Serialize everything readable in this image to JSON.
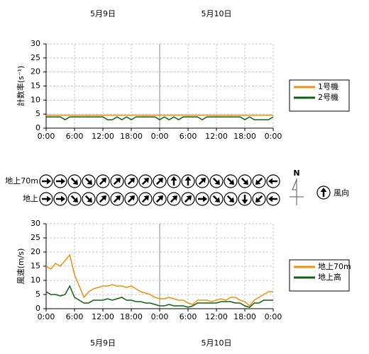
{
  "chart_data": [
    {
      "type": "line",
      "dates": [
        "5月9日",
        "5月10日"
      ],
      "ylabel": "計数率(s⁻¹)",
      "xlim": [
        0,
        48
      ],
      "xticks": [
        {
          "value": 0,
          "label": "0:00"
        },
        {
          "value": 6,
          "label": "6:00"
        },
        {
          "value": 12,
          "label": "12:00"
        },
        {
          "value": 18,
          "label": "18:00"
        },
        {
          "value": 24,
          "label": "0:00"
        },
        {
          "value": 30,
          "label": "6:00"
        },
        {
          "value": 36,
          "label": "12:00"
        },
        {
          "value": 42,
          "label": "18:00"
        },
        {
          "value": 48,
          "label": "0:00"
        }
      ],
      "ylim": [
        0,
        30
      ],
      "yticks": [
        0,
        5,
        10,
        15,
        20,
        25,
        30
      ],
      "grid": true,
      "x": [
        0,
        1,
        2,
        3,
        4,
        5,
        6,
        7,
        8,
        9,
        10,
        11,
        12,
        13,
        14,
        15,
        16,
        17,
        18,
        19,
        20,
        21,
        22,
        23,
        24,
        25,
        26,
        27,
        28,
        29,
        30,
        31,
        32,
        33,
        34,
        35,
        36,
        37,
        38,
        39,
        40,
        41,
        42,
        43,
        44,
        45,
        46,
        47,
        48
      ],
      "series": [
        {
          "name": "1号機",
          "color": "#f0900a",
          "values": [
            4.6,
            4.6,
            4.6,
            4.6,
            4.6,
            4.6,
            4.6,
            4.6,
            4.6,
            4.6,
            4.6,
            4.6,
            4.6,
            4.6,
            4.6,
            4.6,
            4.6,
            4.6,
            4.6,
            4.6,
            4.6,
            4.6,
            4.6,
            4.6,
            4.6,
            4.6,
            4.6,
            4.6,
            4.6,
            4.6,
            4.6,
            4.6,
            4.6,
            4.6,
            4.6,
            4.6,
            4.6,
            4.6,
            4.6,
            4.6,
            4.6,
            4.6,
            4.6,
            4.6,
            4.6,
            4.6,
            4.6,
            4.6,
            4.6
          ]
        },
        {
          "name": "2号機",
          "color": "#106010",
          "values": [
            4,
            4,
            4,
            4,
            3,
            4,
            4,
            4,
            4,
            4,
            4,
            4,
            4,
            3,
            3,
            4,
            3,
            4,
            3,
            4,
            4,
            4,
            4,
            4,
            3,
            4,
            3,
            4,
            3,
            4,
            4,
            4,
            4,
            3,
            4,
            4,
            4,
            4,
            4,
            4,
            4,
            4,
            3,
            4,
            3,
            3,
            3,
            3,
            4
          ]
        }
      ]
    },
    {
      "type": "wind_direction",
      "rows": [
        "地上70m",
        "地上"
      ],
      "legend_label": "風向",
      "north": "N",
      "xlim": [
        0,
        48
      ],
      "x": [
        0,
        3,
        6,
        9,
        12,
        15,
        18,
        21,
        24,
        27,
        30,
        33,
        36,
        39,
        42,
        45,
        48
      ],
      "directions": [
        [
          90,
          90,
          135,
          135,
          45,
          45,
          45,
          45,
          45,
          0,
          0,
          45,
          135,
          135,
          135,
          225,
          270
        ],
        [
          90,
          90,
          135,
          135,
          45,
          45,
          45,
          45,
          45,
          45,
          45,
          90,
          135,
          135,
          180,
          225,
          270
        ]
      ]
    },
    {
      "type": "line",
      "dates": [
        "5月9日",
        "5月10日"
      ],
      "ylabel": "風速(m/s)",
      "xlim": [
        0,
        48
      ],
      "xticks": [
        {
          "value": 0,
          "label": "0:00"
        },
        {
          "value": 6,
          "label": "6:00"
        },
        {
          "value": 12,
          "label": "12:00"
        },
        {
          "value": 18,
          "label": "18:00"
        },
        {
          "value": 24,
          "label": "0:00"
        },
        {
          "value": 30,
          "label": "6:00"
        },
        {
          "value": 36,
          "label": "12:00"
        },
        {
          "value": 42,
          "label": "18:00"
        },
        {
          "value": 48,
          "label": "0:00"
        }
      ],
      "ylim": [
        0,
        30
      ],
      "yticks": [
        0,
        5,
        10,
        15,
        20,
        25,
        30
      ],
      "grid": true,
      "x": [
        0,
        1,
        2,
        3,
        4,
        5,
        6,
        7,
        8,
        9,
        10,
        11,
        12,
        13,
        14,
        15,
        16,
        17,
        18,
        19,
        20,
        21,
        22,
        23,
        24,
        25,
        26,
        27,
        28,
        29,
        30,
        31,
        32,
        33,
        34,
        35,
        36,
        37,
        38,
        39,
        40,
        41,
        42,
        43,
        44,
        45,
        46,
        47,
        48
      ],
      "series": [
        {
          "name": "地上70m",
          "color": "#f0900a",
          "values": [
            15,
            14,
            16,
            15,
            17,
            19,
            12,
            8,
            4,
            6,
            7,
            7.5,
            8,
            8,
            8.5,
            8,
            8,
            7.5,
            8,
            7,
            6,
            5.5,
            5,
            4,
            3.5,
            3.5,
            4,
            3.5,
            3,
            3,
            2,
            1.5,
            3,
            3,
            3,
            2.5,
            3,
            3.5,
            3,
            4,
            4,
            3,
            2.5,
            1,
            3,
            4,
            5,
            6,
            6
          ]
        },
        {
          "name": "地上高",
          "color": "#106010",
          "values": [
            6,
            5,
            5,
            4.5,
            5,
            8,
            4,
            3,
            2,
            2,
            3,
            3,
            3,
            3.5,
            3,
            3.5,
            4,
            3,
            3,
            2.5,
            2.5,
            2,
            2,
            1.5,
            1,
            1,
            1.5,
            1,
            1,
            1,
            0.5,
            1,
            2,
            2,
            2,
            2,
            2,
            2.5,
            2.5,
            2.5,
            2,
            2,
            1,
            0.5,
            2,
            2,
            3,
            3,
            3
          ]
        }
      ]
    }
  ]
}
